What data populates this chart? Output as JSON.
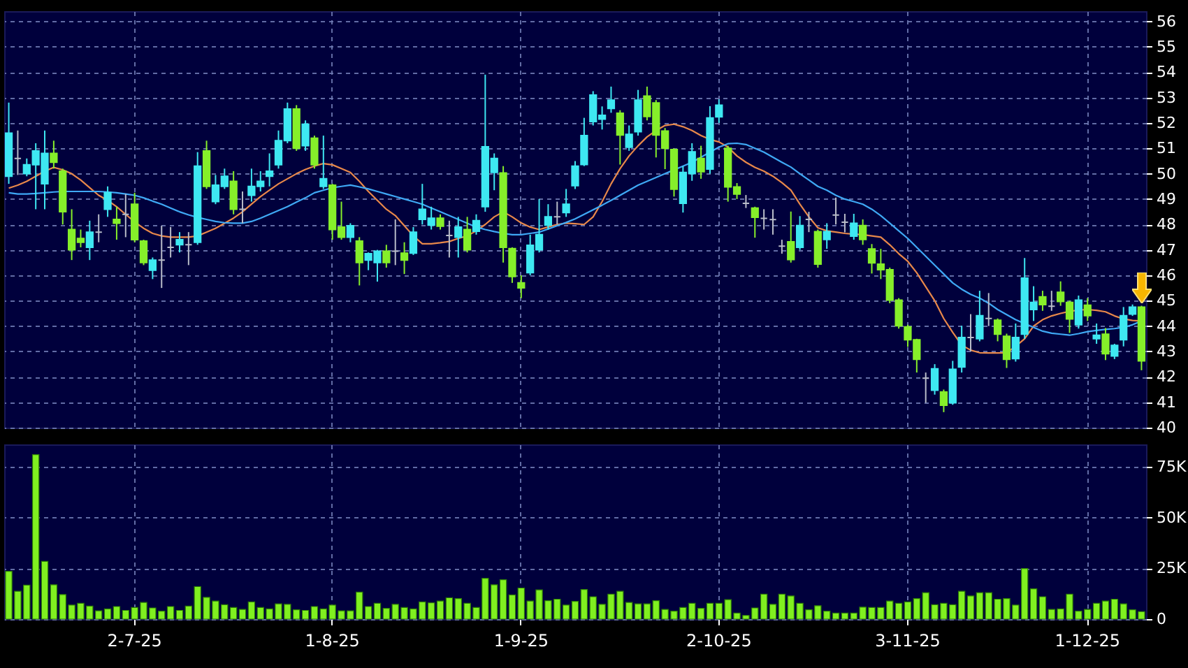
{
  "chart_data": [
    {
      "type": "candlestick",
      "categories": [
        null,
        null,
        null,
        null,
        null,
        null,
        null,
        null,
        null,
        null,
        null,
        null,
        null,
        null,
        null,
        null,
        null,
        null,
        null,
        null,
        null,
        null,
        null,
        null,
        null,
        null,
        null,
        null,
        null,
        null,
        null,
        null,
        null,
        null,
        null,
        null,
        null,
        null,
        null,
        null,
        null,
        null,
        null,
        null,
        null,
        null,
        null,
        null,
        null,
        null,
        null,
        null,
        null,
        null,
        null,
        null,
        null,
        null,
        null,
        null,
        null,
        null,
        null,
        null,
        null,
        null,
        null,
        null,
        null,
        null,
        null,
        null,
        null,
        null,
        null,
        null,
        null,
        null,
        null,
        null,
        null,
        null,
        null,
        null,
        null,
        null,
        null,
        null,
        null,
        null,
        null,
        null,
        null,
        null,
        null,
        null,
        null,
        null,
        null,
        null,
        null,
        null,
        null,
        null,
        null,
        null,
        null,
        null,
        null,
        null,
        null,
        null,
        null,
        null,
        null,
        null,
        null,
        null,
        null,
        null,
        null,
        null,
        null,
        null,
        null,
        null,
        null
      ],
      "ohlc": [
        [
          49.9,
          52.8,
          49.6,
          51.6
        ],
        [
          50.6,
          51.7,
          49.95,
          50.6
        ],
        [
          50.0,
          50.6,
          49.9,
          50.35
        ],
        [
          50.35,
          51.2,
          48.6,
          50.9
        ],
        [
          49.6,
          51.7,
          48.6,
          50.8
        ],
        [
          50.8,
          51.3,
          50.2,
          50.45
        ],
        [
          50.1,
          50.2,
          48.0,
          48.5
        ],
        [
          47.8,
          48.6,
          46.6,
          47.0
        ],
        [
          47.45,
          47.8,
          47.1,
          47.3
        ],
        [
          47.1,
          48.15,
          46.6,
          47.7
        ],
        [
          47.7,
          48.4,
          47.3,
          47.7
        ],
        [
          48.6,
          49.5,
          48.3,
          49.25
        ],
        [
          48.2,
          48.7,
          47.4,
          48.05
        ],
        [
          48.4,
          49.2,
          47.5,
          48.4
        ],
        [
          48.8,
          49.25,
          47.3,
          47.4
        ],
        [
          47.35,
          47.4,
          46.4,
          46.5
        ],
        [
          46.2,
          46.7,
          45.85,
          46.6
        ],
        [
          46.6,
          47.95,
          45.5,
          46.6
        ],
        [
          47.1,
          47.9,
          46.7,
          47.1
        ],
        [
          47.2,
          47.7,
          46.9,
          47.4
        ],
        [
          47.2,
          47.7,
          46.4,
          47.2
        ],
        [
          47.3,
          50.85,
          47.2,
          50.3
        ],
        [
          50.9,
          51.3,
          49.4,
          49.5
        ],
        [
          48.9,
          49.95,
          48.8,
          49.55
        ],
        [
          49.5,
          50.2,
          49.4,
          49.9
        ],
        [
          49.7,
          50.1,
          48.4,
          48.6
        ],
        [
          48.6,
          49.3,
          48.05,
          48.6
        ],
        [
          49.15,
          50.2,
          48.9,
          49.5
        ],
        [
          49.5,
          50.1,
          49.3,
          49.7
        ],
        [
          49.9,
          50.8,
          49.5,
          50.1
        ],
        [
          50.35,
          51.7,
          50.2,
          51.3
        ],
        [
          51.3,
          52.8,
          51.2,
          52.55
        ],
        [
          52.55,
          52.7,
          50.9,
          51.0
        ],
        [
          51.1,
          52.1,
          50.9,
          51.95
        ],
        [
          51.4,
          51.5,
          50.2,
          50.35
        ],
        [
          49.5,
          51.5,
          49.4,
          49.8
        ],
        [
          49.55,
          49.6,
          47.4,
          47.8
        ],
        [
          47.9,
          48.9,
          47.4,
          47.5
        ],
        [
          47.5,
          48.05,
          47.3,
          47.95
        ],
        [
          47.35,
          47.5,
          45.6,
          46.5
        ],
        [
          46.6,
          46.9,
          46.2,
          46.85
        ],
        [
          46.5,
          47.0,
          45.75,
          46.95
        ],
        [
          46.95,
          47.2,
          46.3,
          46.5
        ],
        [
          46.95,
          48.2,
          46.4,
          46.95
        ],
        [
          46.87,
          47.3,
          46.05,
          46.6
        ],
        [
          46.87,
          47.9,
          46.8,
          47.7
        ],
        [
          48.2,
          49.6,
          48.0,
          48.6
        ],
        [
          47.97,
          48.7,
          47.8,
          48.25
        ],
        [
          48.25,
          48.4,
          47.8,
          47.93
        ],
        [
          47.57,
          48.15,
          46.7,
          47.57
        ],
        [
          47.5,
          48.3,
          46.7,
          47.9
        ],
        [
          47.8,
          48.3,
          46.9,
          47.0
        ],
        [
          47.73,
          48.4,
          47.6,
          48.15
        ],
        [
          48.7,
          53.9,
          48.5,
          51.06
        ],
        [
          50.05,
          50.8,
          49.35,
          50.6
        ],
        [
          50.03,
          50.3,
          46.5,
          47.1
        ],
        [
          47.05,
          47.1,
          45.7,
          45.95
        ],
        [
          45.7,
          46.0,
          45.1,
          45.5
        ],
        [
          46.1,
          47.6,
          46.0,
          47.18
        ],
        [
          47.0,
          49.0,
          46.9,
          47.6
        ],
        [
          47.97,
          48.8,
          47.8,
          48.3
        ],
        [
          48.3,
          48.9,
          48.0,
          48.3
        ],
        [
          48.47,
          49.4,
          48.3,
          48.8
        ],
        [
          49.53,
          50.5,
          49.4,
          50.3
        ],
        [
          50.36,
          52.2,
          50.3,
          51.5
        ],
        [
          52.05,
          53.25,
          51.9,
          53.1
        ],
        [
          52.15,
          52.65,
          51.74,
          52.3
        ],
        [
          52.57,
          53.43,
          52.4,
          52.9
        ],
        [
          52.38,
          52.5,
          50.36,
          51.52
        ],
        [
          51.04,
          51.9,
          50.9,
          51.55
        ],
        [
          51.65,
          53.3,
          51.5,
          52.9
        ],
        [
          53.06,
          53.43,
          52.1,
          52.25
        ],
        [
          52.79,
          52.9,
          50.64,
          51.52
        ],
        [
          51.68,
          51.8,
          50.18,
          51.0
        ],
        [
          50.95,
          51.0,
          49.1,
          49.39
        ],
        [
          48.83,
          50.3,
          48.47,
          50.05
        ],
        [
          50.0,
          51.2,
          49.72,
          50.86
        ],
        [
          50.6,
          51.1,
          49.8,
          50.08
        ],
        [
          50.18,
          52.66,
          50.0,
          52.2
        ],
        [
          52.24,
          52.93,
          52.0,
          52.7
        ],
        [
          51.0,
          51.1,
          48.9,
          49.48
        ],
        [
          49.48,
          49.63,
          49.0,
          49.2
        ],
        [
          48.83,
          49.16,
          48.65,
          48.83
        ],
        [
          48.65,
          48.7,
          47.48,
          48.28
        ],
        [
          48.24,
          48.6,
          47.8,
          48.24
        ],
        [
          48.19,
          48.6,
          47.6,
          48.19
        ],
        [
          47.15,
          47.4,
          46.85,
          47.15
        ],
        [
          47.32,
          48.51,
          46.5,
          46.62
        ],
        [
          47.1,
          48.33,
          47.0,
          47.96
        ],
        [
          48.2,
          48.5,
          47.7,
          48.2
        ],
        [
          47.72,
          47.8,
          46.3,
          46.44
        ],
        [
          47.41,
          48.05,
          47.04,
          47.72
        ],
        [
          48.37,
          49.06,
          48.0,
          48.37
        ],
        [
          48.09,
          48.42,
          47.69,
          48.09
        ],
        [
          47.54,
          48.42,
          47.4,
          48.05
        ],
        [
          47.96,
          48.2,
          47.2,
          47.41
        ],
        [
          47.04,
          47.23,
          46.07,
          46.49
        ],
        [
          46.44,
          47.04,
          45.85,
          46.22
        ],
        [
          46.22,
          46.3,
          44.9,
          45.02
        ],
        [
          45.02,
          45.1,
          43.9,
          44.01
        ],
        [
          43.97,
          44.05,
          43.18,
          43.46
        ],
        [
          43.46,
          43.5,
          42.17,
          42.69
        ],
        [
          41.95,
          42.17,
          40.98,
          41.95
        ],
        [
          41.47,
          42.5,
          41.3,
          42.32
        ],
        [
          41.4,
          41.5,
          40.61,
          40.88
        ],
        [
          40.98,
          42.63,
          40.9,
          42.3
        ],
        [
          42.39,
          44.01,
          42.17,
          43.55
        ],
        [
          43.55,
          44.47,
          43.0,
          43.55
        ],
        [
          43.5,
          45.39,
          43.4,
          44.41
        ],
        [
          44.3,
          45.3,
          44.0,
          44.3
        ],
        [
          44.23,
          44.3,
          43.4,
          43.68
        ],
        [
          43.6,
          43.7,
          42.35,
          42.69
        ],
        [
          42.72,
          44.1,
          42.6,
          43.55
        ],
        [
          43.68,
          46.68,
          43.5,
          45.89
        ],
        [
          44.65,
          45.57,
          44.2,
          44.93
        ],
        [
          45.15,
          45.39,
          44.6,
          44.84
        ],
        [
          44.78,
          45.39,
          44.6,
          44.78
        ],
        [
          45.33,
          45.76,
          44.8,
          44.97
        ],
        [
          44.93,
          45.0,
          43.73,
          44.28
        ],
        [
          44.05,
          45.2,
          43.9,
          45.02
        ],
        [
          44.82,
          45.1,
          44.2,
          44.41
        ],
        [
          43.5,
          44.1,
          43.3,
          43.64
        ],
        [
          43.68,
          43.92,
          42.66,
          42.91
        ],
        [
          42.82,
          43.3,
          42.7,
          43.24
        ],
        [
          43.46,
          44.75,
          43.2,
          44.41
        ],
        [
          44.47,
          44.85,
          44.4,
          44.75
        ],
        [
          44.75,
          44.8,
          42.26,
          42.63
        ]
      ],
      "colors": [
        "#3ee8f2",
        "#b8bcc8",
        "#3ee8f2",
        "#3ee8f2",
        "#3ee8f2",
        "#86ef2a",
        "#86ef2a",
        "#86ef2a",
        "#86ef2a",
        "#3ee8f2",
        "#b8bcc8",
        "#3ee8f2",
        "#86ef2a",
        "#b8bcc8",
        "#86ef2a",
        "#86ef2a",
        "#3ee8f2",
        "#b8bcc8",
        "#b8bcc8",
        "#3ee8f2",
        "#b8bcc8",
        "#3ee8f2",
        "#86ef2a",
        "#3ee8f2",
        "#3ee8f2",
        "#86ef2a",
        "#b8bcc8",
        "#3ee8f2",
        "#3ee8f2",
        "#3ee8f2",
        "#3ee8f2",
        "#3ee8f2",
        "#86ef2a",
        "#3ee8f2",
        "#86ef2a",
        "#3ee8f2",
        "#86ef2a",
        "#86ef2a",
        "#3ee8f2",
        "#86ef2a",
        "#3ee8f2",
        "#3ee8f2",
        "#86ef2a",
        "#b8bcc8",
        "#86ef2a",
        "#3ee8f2",
        "#3ee8f2",
        "#3ee8f2",
        "#86ef2a",
        "#b8bcc8",
        "#3ee8f2",
        "#86ef2a",
        "#3ee8f2",
        "#3ee8f2",
        "#3ee8f2",
        "#86ef2a",
        "#86ef2a",
        "#86ef2a",
        "#3ee8f2",
        "#3ee8f2",
        "#3ee8f2",
        "#b8bcc8",
        "#3ee8f2",
        "#3ee8f2",
        "#3ee8f2",
        "#3ee8f2",
        "#3ee8f2",
        "#3ee8f2",
        "#86ef2a",
        "#3ee8f2",
        "#3ee8f2",
        "#86ef2a",
        "#86ef2a",
        "#86ef2a",
        "#86ef2a",
        "#3ee8f2",
        "#3ee8f2",
        "#86ef2a",
        "#3ee8f2",
        "#3ee8f2",
        "#86ef2a",
        "#86ef2a",
        "#b8bcc8",
        "#86ef2a",
        "#b8bcc8",
        "#b8bcc8",
        "#b8bcc8",
        "#86ef2a",
        "#3ee8f2",
        "#b8bcc8",
        "#86ef2a",
        "#3ee8f2",
        "#b8bcc8",
        "#b8bcc8",
        "#3ee8f2",
        "#86ef2a",
        "#86ef2a",
        "#86ef2a",
        "#86ef2a",
        "#86ef2a",
        "#86ef2a",
        "#86ef2a",
        "#b8bcc8",
        "#3ee8f2",
        "#86ef2a",
        "#3ee8f2",
        "#3ee8f2",
        "#b8bcc8",
        "#3ee8f2",
        "#b8bcc8",
        "#86ef2a",
        "#86ef2a",
        "#3ee8f2",
        "#3ee8f2",
        "#3ee8f2",
        "#86ef2a",
        "#b8bcc8",
        "#86ef2a",
        "#86ef2a",
        "#3ee8f2",
        "#86ef2a",
        "#3ee8f2",
        "#86ef2a",
        "#3ee8f2",
        "#3ee8f2",
        "#3ee8f2",
        "#86ef2a"
      ],
      "series": [
        {
          "type": "line",
          "color": "#e8884a",
          "values": [
            49.43,
            49.55,
            49.7,
            49.9,
            50.1,
            50.25,
            50.15,
            50.0,
            49.75,
            49.45,
            49.15,
            48.95,
            48.7,
            48.4,
            48.1,
            47.85,
            47.65,
            47.55,
            47.5,
            47.5,
            47.5,
            47.55,
            47.7,
            47.85,
            48.05,
            48.25,
            48.5,
            48.8,
            49.1,
            49.35,
            49.6,
            49.8,
            50.0,
            50.17,
            50.3,
            50.4,
            50.35,
            50.2,
            50.05,
            49.7,
            49.3,
            48.95,
            48.6,
            48.35,
            47.95,
            47.55,
            47.24,
            47.24,
            47.28,
            47.33,
            47.45,
            47.55,
            47.75,
            48.0,
            48.3,
            48.5,
            48.3,
            48.06,
            47.9,
            47.8,
            47.9,
            48.0,
            48.05,
            48.03,
            48.0,
            48.3,
            48.9,
            49.6,
            50.2,
            50.7,
            51.1,
            51.45,
            51.7,
            51.9,
            51.95,
            51.85,
            51.7,
            51.5,
            51.35,
            51.25,
            51.05,
            50.7,
            50.45,
            50.25,
            50.1,
            49.9,
            49.65,
            49.35,
            48.8,
            48.3,
            47.87,
            47.75,
            47.7,
            47.65,
            47.62,
            47.6,
            47.55,
            47.5,
            47.2,
            46.85,
            46.55,
            46.1,
            45.55,
            45.0,
            44.3,
            43.75,
            43.25,
            43.05,
            42.95,
            42.94,
            42.94,
            42.95,
            43.2,
            43.5,
            44.0,
            44.25,
            44.4,
            44.5,
            44.58,
            44.63,
            44.65,
            44.62,
            44.56,
            44.4,
            44.28,
            44.22,
            44.2
          ]
        },
        {
          "type": "line",
          "color": "#3fa9f5",
          "values": [
            49.25,
            49.2,
            49.2,
            49.22,
            49.25,
            49.28,
            49.3,
            49.3,
            49.3,
            49.3,
            49.3,
            49.28,
            49.25,
            49.2,
            49.15,
            49.05,
            48.92,
            48.8,
            48.65,
            48.5,
            48.38,
            48.28,
            48.2,
            48.12,
            48.07,
            48.05,
            48.05,
            48.12,
            48.25,
            48.4,
            48.55,
            48.7,
            48.88,
            49.05,
            49.25,
            49.35,
            49.45,
            49.5,
            49.55,
            49.48,
            49.4,
            49.3,
            49.2,
            49.1,
            49.0,
            48.9,
            48.8,
            48.65,
            48.5,
            48.35,
            48.2,
            48.05,
            47.9,
            47.8,
            47.72,
            47.65,
            47.6,
            47.6,
            47.65,
            47.7,
            47.82,
            47.95,
            48.08,
            48.22,
            48.4,
            48.58,
            48.76,
            48.95,
            49.15,
            49.35,
            49.55,
            49.7,
            49.85,
            50.0,
            50.15,
            50.3,
            50.45,
            50.65,
            50.85,
            51.05,
            51.18,
            51.2,
            51.15,
            51.0,
            50.85,
            50.65,
            50.45,
            50.26,
            50.0,
            49.75,
            49.5,
            49.35,
            49.15,
            49.0,
            48.9,
            48.8,
            48.6,
            48.35,
            48.05,
            47.75,
            47.45,
            47.1,
            46.75,
            46.4,
            46.05,
            45.7,
            45.45,
            45.25,
            45.1,
            44.9,
            44.65,
            44.45,
            44.25,
            44.1,
            43.95,
            43.8,
            43.72,
            43.68,
            43.64,
            43.7,
            43.78,
            43.83,
            43.87,
            43.9,
            43.95,
            44.05,
            44.2
          ]
        }
      ],
      "ylim": [
        40,
        56.4
      ],
      "yticks": [
        40,
        41,
        42,
        43,
        44,
        45,
        46,
        47,
        48,
        49,
        50,
        51,
        52,
        53,
        54,
        55,
        56
      ],
      "grid": true,
      "tick_labels": "y"
    },
    {
      "type": "bar",
      "categories": [
        null,
        null,
        null,
        null,
        null,
        null,
        null,
        null,
        null,
        null,
        null,
        null,
        null,
        null,
        "2-7-25",
        null,
        null,
        null,
        null,
        null,
        null,
        null,
        null,
        null,
        null,
        null,
        null,
        null,
        null,
        null,
        null,
        null,
        null,
        null,
        null,
        null,
        "1-8-25",
        null,
        null,
        null,
        null,
        null,
        null,
        null,
        null,
        null,
        null,
        null,
        null,
        null,
        null,
        null,
        null,
        null,
        null,
        null,
        null,
        "1-9-25",
        null,
        null,
        null,
        null,
        null,
        null,
        null,
        null,
        null,
        null,
        null,
        null,
        null,
        null,
        null,
        null,
        null,
        null,
        null,
        null,
        null,
        "2-10-25",
        null,
        null,
        null,
        null,
        null,
        null,
        null,
        null,
        null,
        null,
        null,
        null,
        null,
        null,
        null,
        null,
        null,
        null,
        null,
        null,
        "3-11-25",
        null,
        null,
        null,
        null,
        null,
        null,
        null,
        null,
        null,
        null,
        null,
        null,
        null,
        null,
        null,
        null,
        null,
        null,
        null,
        "1-12-25",
        null,
        null,
        null,
        null,
        null,
        null
      ],
      "values": [
        23.5,
        13.7,
        16.7,
        81,
        28.4,
        16.9,
        12.1,
        6.9,
        7.8,
        6.4,
        4.1,
        5.0,
        6.2,
        4.3,
        5.7,
        8.2,
        5.5,
        3.9,
        6.2,
        4.3,
        6.4,
        16.0,
        10.7,
        8.9,
        7.1,
        5.7,
        4.8,
        8.5,
        5.7,
        5.0,
        7.5,
        7.3,
        4.6,
        4.3,
        6.2,
        5.0,
        6.9,
        4.1,
        4.1,
        13.3,
        6.2,
        7.8,
        5.3,
        7.3,
        5.7,
        5.0,
        8.5,
        8.0,
        8.9,
        10.5,
        10.1,
        7.8,
        5.7,
        20.1,
        16.9,
        19.4,
        11.9,
        15.3,
        8.9,
        14.4,
        9.1,
        9.8,
        6.9,
        8.7,
        14.6,
        11.0,
        7.3,
        12.3,
        13.7,
        8.2,
        7.5,
        7.5,
        9.1,
        4.8,
        3.9,
        5.7,
        7.8,
        5.3,
        7.8,
        7.8,
        9.6,
        3.0,
        1.8,
        5.5,
        12.3,
        7.3,
        12.3,
        11.4,
        7.8,
        4.6,
        6.6,
        3.9,
        3.0,
        3.0,
        3.0,
        5.9,
        5.7,
        5.7,
        8.9,
        7.8,
        8.5,
        10.1,
        13.0,
        7.1,
        7.8,
        7.1,
        13.7,
        11.4,
        13.0,
        13.0,
        9.8,
        10.1,
        6.9,
        24.9,
        14.9,
        11.0,
        4.8,
        5.0,
        12.3,
        3.9,
        4.8,
        7.8,
        8.9,
        9.8,
        7.5,
        4.6,
        3.7
      ],
      "color": "#80f020",
      "ylim": [
        0,
        86
      ],
      "yticks": [
        0,
        {
          "value": 25,
          "label": "25K"
        },
        {
          "value": 50,
          "label": "50K"
        },
        {
          "value": 75,
          "label": "75K"
        }
      ],
      "grid": true
    }
  ]
}
